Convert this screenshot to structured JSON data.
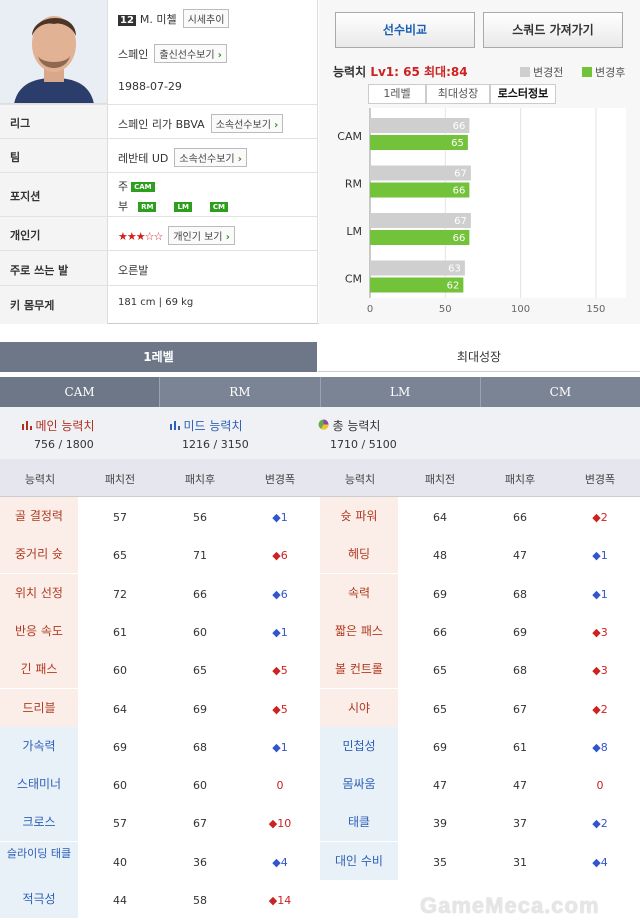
{
  "player": {
    "number": "12",
    "name": "M. 미첼",
    "trend_btn": "시세추이",
    "nation": "스페인",
    "nation_btn": "출신선수보기",
    "birth": "1988-07-29"
  },
  "labels": {
    "league": "리그",
    "team": "팀",
    "position": "포지션",
    "personal": "개인기",
    "foot": "주로 쓰는 발",
    "body": "키 몸무게"
  },
  "values": {
    "league": "스페인 리가 BBVA",
    "league_btn": "소속선수보기",
    "team": "레반테 UD",
    "team_btn": "소속선수보기",
    "pos_main_label": "주",
    "pos_main": "CAM",
    "pos_sub_label": "부",
    "pos_sub": [
      "RM",
      "LM",
      "CM"
    ],
    "stars": "★★★☆☆",
    "personal_btn": "개인기 보기",
    "foot": "오른발",
    "body": "181 cm | 69 kg"
  },
  "buttons": {
    "compare": "선수비교",
    "squad": "스쿼드 가져가기"
  },
  "chart_header": {
    "title": "능력치",
    "lv": "Lv1: 65",
    "max": "최대:84",
    "legend_before": "변경전",
    "legend_after": "변경후",
    "tabs": [
      "1레벨",
      "최대성장",
      "로스터정보"
    ]
  },
  "colors": {
    "before": "#cfcfcf",
    "after": "#72c23a",
    "header": "#6d7787",
    "up": "#cc2222",
    "down": "#3355cc"
  },
  "chart_data": {
    "type": "bar",
    "orientation": "horizontal",
    "categories": [
      "CAM",
      "RM",
      "LM",
      "CM"
    ],
    "series": [
      {
        "name": "변경전",
        "values": [
          66,
          67,
          67,
          63
        ]
      },
      {
        "name": "변경후",
        "values": [
          65,
          66,
          66,
          62
        ]
      }
    ],
    "xlim": [
      0,
      170
    ],
    "xticks": [
      0,
      50,
      100,
      150
    ],
    "grid": true,
    "legend": "top-right"
  },
  "level_tabs": [
    "1레벨",
    "최대성장"
  ],
  "positions": [
    "CAM",
    "RM",
    "LM",
    "CM"
  ],
  "summary": {
    "main": {
      "label": "메인 능력치",
      "value": "756 / 1800"
    },
    "mid": {
      "label": "미드 능력치",
      "value": "1216 / 3150"
    },
    "total": {
      "label": "총 능력치",
      "value": "1710 / 5100"
    }
  },
  "table_headers": [
    "능력치",
    "패치전",
    "패치후",
    "변경폭"
  ],
  "left_stats": [
    {
      "name": "골 결정력",
      "before": "57",
      "after": "56",
      "change": "1",
      "dir": "down"
    },
    {
      "name": "중거리 슛",
      "before": "65",
      "after": "71",
      "change": "6",
      "dir": "up"
    },
    {
      "name": "위치 선정",
      "before": "72",
      "after": "66",
      "change": "6",
      "dir": "down"
    },
    {
      "name": "반응 속도",
      "before": "61",
      "after": "60",
      "change": "1",
      "dir": "down"
    },
    {
      "name": "긴 패스",
      "before": "60",
      "after": "65",
      "change": "5",
      "dir": "up"
    },
    {
      "name": "드리블",
      "before": "64",
      "after": "69",
      "change": "5",
      "dir": "up"
    },
    {
      "name": "가속력",
      "before": "69",
      "after": "68",
      "change": "1",
      "dir": "down"
    },
    {
      "name": "스태미너",
      "before": "60",
      "after": "60",
      "change": "0",
      "dir": "none"
    },
    {
      "name": "크로스",
      "before": "57",
      "after": "67",
      "change": "10",
      "dir": "up"
    },
    {
      "name": "슬라이딩 태클",
      "before": "40",
      "after": "36",
      "change": "4",
      "dir": "down"
    },
    {
      "name": "적극성",
      "before": "44",
      "after": "58",
      "change": "14",
      "dir": "up"
    }
  ],
  "right_stats": [
    {
      "name": "슛 파워",
      "before": "64",
      "after": "66",
      "change": "2",
      "dir": "up"
    },
    {
      "name": "헤딩",
      "before": "48",
      "after": "47",
      "change": "1",
      "dir": "down"
    },
    {
      "name": "속력",
      "before": "69",
      "after": "68",
      "change": "1",
      "dir": "down"
    },
    {
      "name": "짧은 패스",
      "before": "66",
      "after": "69",
      "change": "3",
      "dir": "up"
    },
    {
      "name": "볼 컨트롤",
      "before": "65",
      "after": "68",
      "change": "3",
      "dir": "up"
    },
    {
      "name": "시야",
      "before": "65",
      "after": "67",
      "change": "2",
      "dir": "up"
    },
    {
      "name": "민첩성",
      "before": "69",
      "after": "61",
      "change": "8",
      "dir": "down"
    },
    {
      "name": "몸싸움",
      "before": "47",
      "after": "47",
      "change": "0",
      "dir": "none"
    },
    {
      "name": "태클",
      "before": "39",
      "after": "37",
      "change": "2",
      "dir": "down"
    },
    {
      "name": "대인 수비",
      "before": "35",
      "after": "31",
      "change": "4",
      "dir": "down"
    }
  ],
  "watermark": "GameMeca.com"
}
